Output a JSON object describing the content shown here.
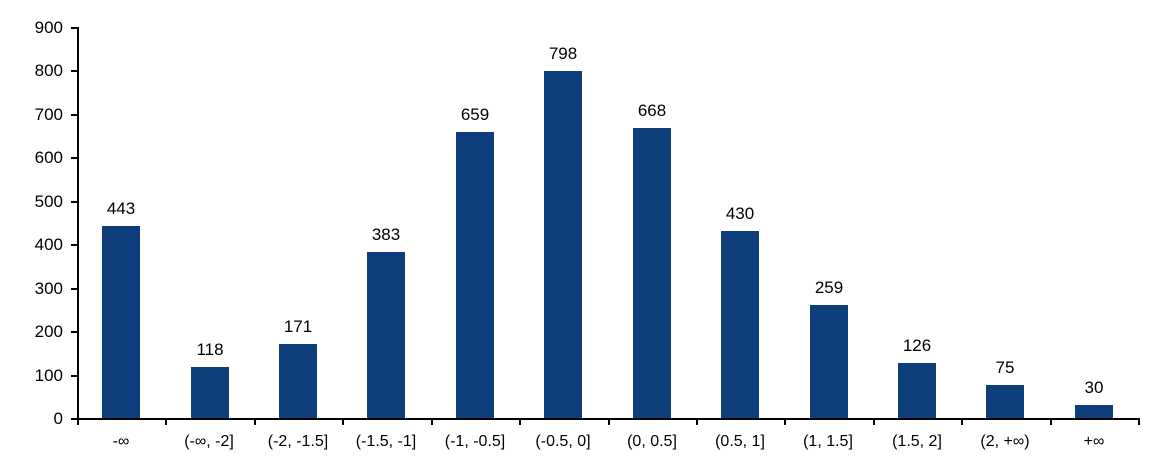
{
  "chart_data": {
    "type": "bar",
    "title": "",
    "xlabel": "",
    "ylabel": "",
    "categories": [
      "-∞",
      "(-∞, -2]",
      "(-2, -1.5]",
      "(-1.5, -1]",
      "(-1, -0.5]",
      "(-0.5, 0]",
      "(0, 0.5]",
      "(0.5, 1]",
      "(1, 1.5]",
      "(1.5, 2]",
      "(2, +∞)",
      "+∞"
    ],
    "values": [
      443,
      118,
      171,
      383,
      659,
      798,
      668,
      430,
      259,
      126,
      75,
      30
    ],
    "ylim": [
      0,
      900
    ],
    "y_ticks": [
      0,
      100,
      200,
      300,
      400,
      500,
      600,
      700,
      800,
      900
    ],
    "grid": false,
    "legend": "none",
    "data_labels": true,
    "colors": {
      "bar": "#0e3d7c",
      "axis": "#000000",
      "text": "#000000",
      "background": "#ffffff"
    }
  }
}
